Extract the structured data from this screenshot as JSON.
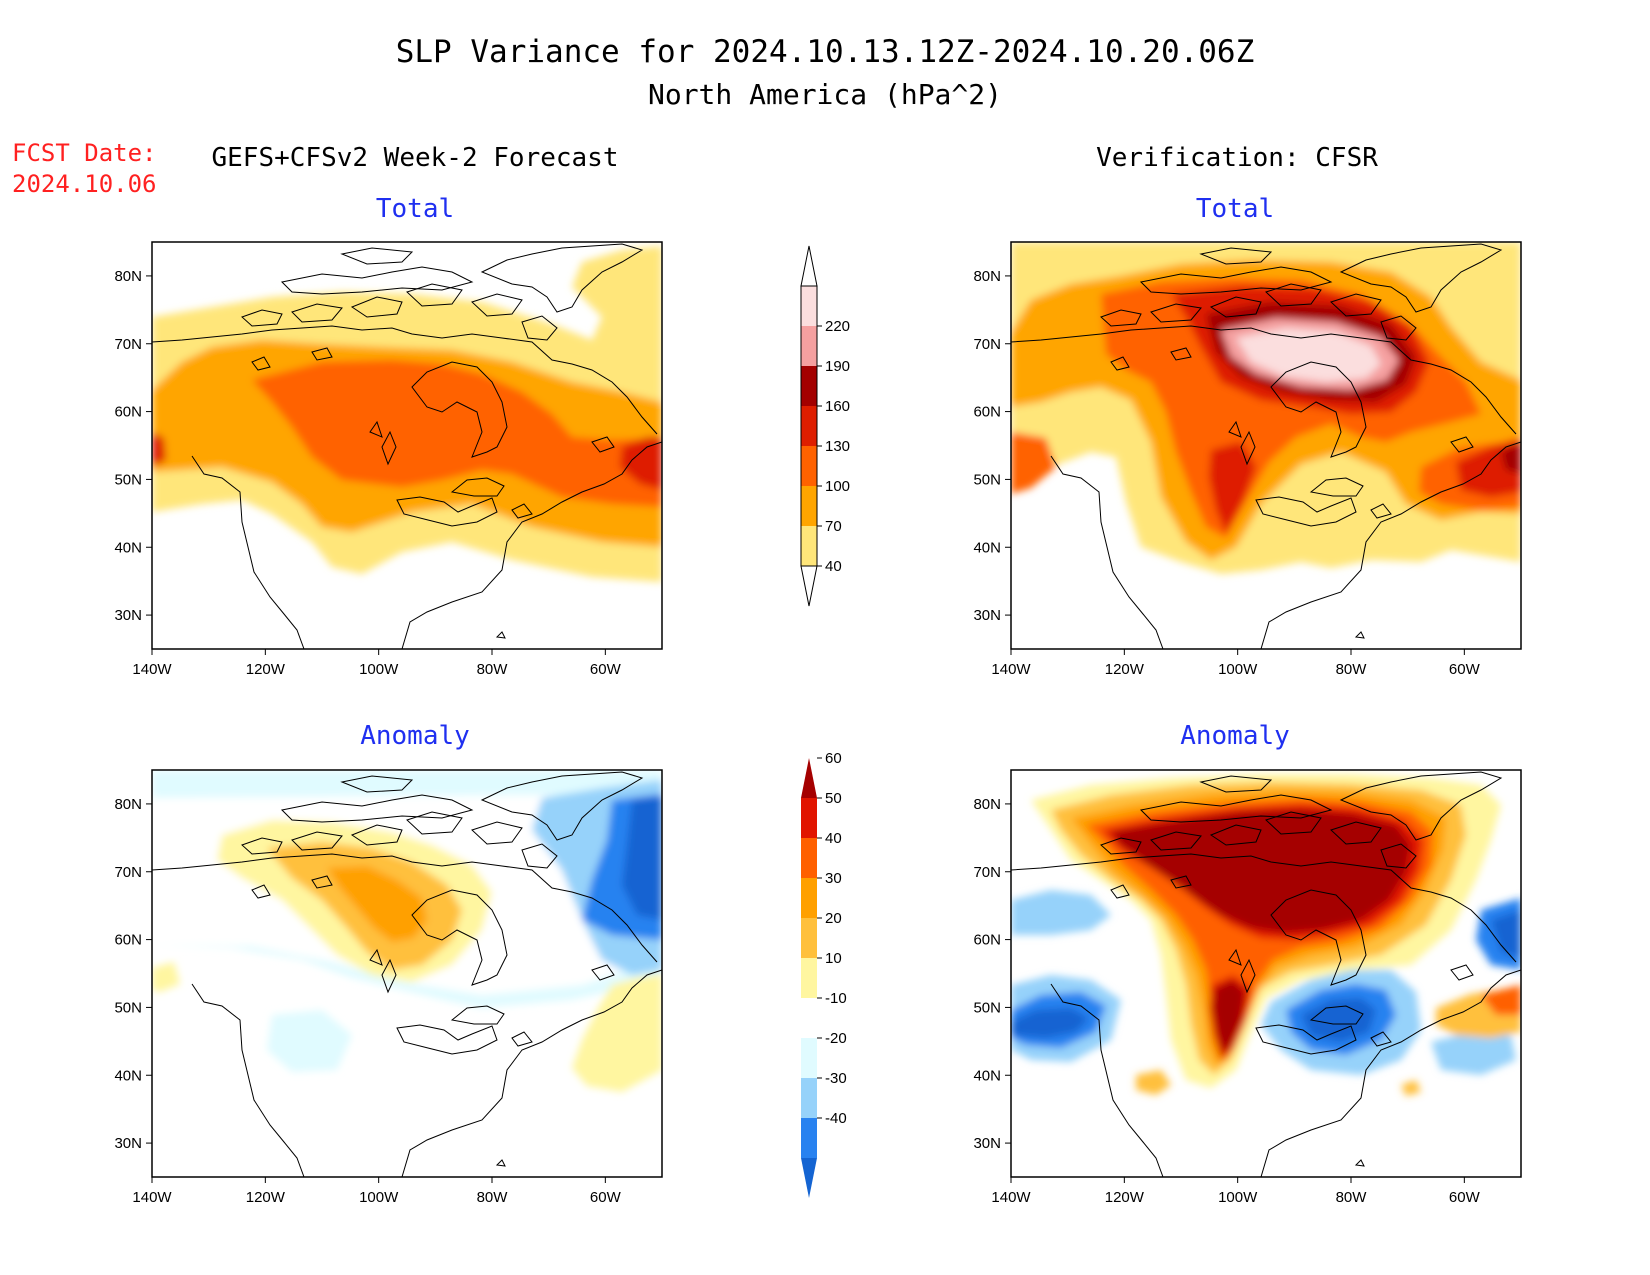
{
  "header": {
    "title": "SLP Variance for 2024.10.13.12Z-2024.10.20.06Z",
    "subtitle": "North America (hPa^2)",
    "fcst_label": "FCST Date:",
    "fcst_date": "2024.10.06",
    "left_heading": "GEFS+CFSv2 Week-2 Forecast",
    "right_heading": "Verification: CFSR"
  },
  "panels": [
    {
      "id": "fcst-total",
      "title": "Total"
    },
    {
      "id": "verif-total",
      "title": "Total"
    },
    {
      "id": "fcst-anomaly",
      "title": "Anomaly"
    },
    {
      "id": "verif-anomaly",
      "title": "Anomaly"
    }
  ],
  "axes": {
    "lat_labels": [
      "80N",
      "70N",
      "60N",
      "50N",
      "40N",
      "30N"
    ],
    "lat_values": [
      80,
      70,
      60,
      50,
      40,
      30
    ],
    "lon_labels": [
      "140W",
      "120W",
      "100W",
      "80W",
      "60W"
    ],
    "lon_values": [
      -140,
      -120,
      -100,
      -80,
      -60
    ],
    "lon_range": [
      -140,
      -50
    ],
    "lat_range": [
      25,
      85
    ]
  },
  "colorbars": {
    "total": {
      "labels": [
        "40",
        "70",
        "100",
        "130",
        "160",
        "190",
        "220"
      ],
      "colors": [
        "#ffe67a",
        "#ffa500",
        "#ff6200",
        "#de1e00",
        "#a30000",
        "#f5a0a0",
        "#fbdede"
      ]
    },
    "anomaly": {
      "labels": [
        "-40",
        "-30",
        "-20",
        "-10",
        "10",
        "20",
        "30",
        "40",
        "50",
        "60"
      ],
      "colors": [
        "#1464d2",
        "#2882f0",
        "#96d2fa",
        "#e0fbff",
        "#ffffff",
        "#fff6a0",
        "#ffc03c",
        "#ffa000",
        "#ff6000",
        "#e11400",
        "#a50000"
      ]
    }
  }
}
